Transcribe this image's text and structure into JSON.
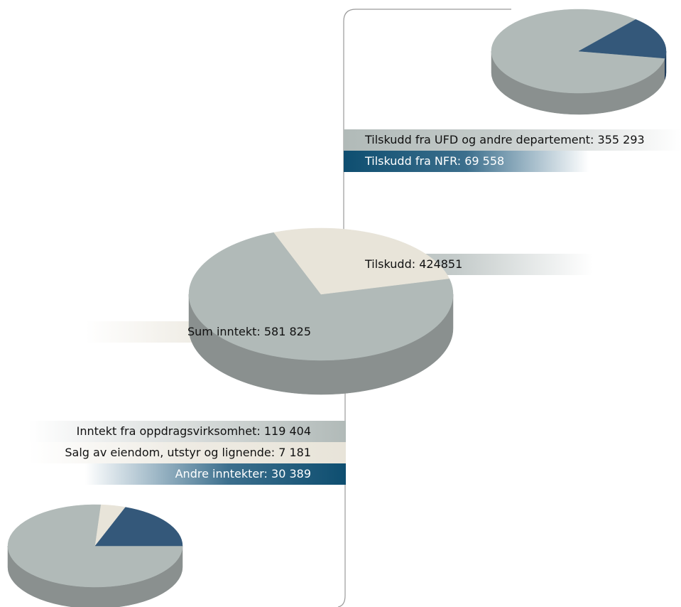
{
  "colors": {
    "grey_top": "#b1bab8",
    "grey_side": "#8a908f",
    "beige_top": "#e8e4d9",
    "beige_side": "#b9b5ab",
    "blue_top": "#34587a",
    "blue_side": "#1d3a59",
    "bar_grey": "#b1bab8",
    "bar_beige": "#e8e4d9",
    "bar_blue": "#0e4e70",
    "connector": "#9a9a9a",
    "text_dark": "#111111",
    "text_light": "#ffffff"
  },
  "chart_data": [
    {
      "id": "main-pie",
      "type": "pie",
      "title": "",
      "slices": [
        {
          "label": "Tilskudd",
          "value": 424851,
          "color": "grey"
        },
        {
          "label": "Sum inntekt",
          "value": 156974,
          "color": "beige"
        }
      ],
      "total_label": "Sum inntekt: 581 825",
      "labels": [
        "Sum inntekt: 581 825",
        "Tilskudd: 424851"
      ]
    },
    {
      "id": "tilskudd-pie",
      "type": "pie",
      "title": "",
      "slices": [
        {
          "label": "Tilskudd fra UFD og andre departement: 355 293",
          "value": 355293,
          "color": "grey"
        },
        {
          "label": "Tilskudd fra NFR: 69 558",
          "value": 69558,
          "color": "blue"
        }
      ]
    },
    {
      "id": "other-income-pie",
      "type": "pie",
      "title": "",
      "slices": [
        {
          "label": "Inntekt fra oppdragsvirksomhet: 119 404",
          "value": 119404,
          "color": "grey"
        },
        {
          "label": "Salg av eiendom, utstyr og lignende: 7 181",
          "value": 7181,
          "color": "beige"
        },
        {
          "label": "Andre inntekter: 30 389",
          "value": 30389,
          "color": "blue"
        }
      ]
    }
  ]
}
